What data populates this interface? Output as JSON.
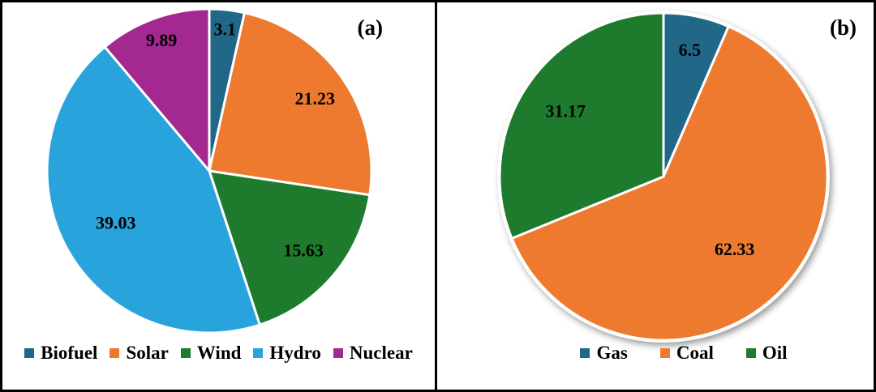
{
  "figure": {
    "background": "#FFFFFF",
    "border_color": "#000000",
    "text_color": "#000000"
  },
  "chart_data": [
    {
      "type": "pie",
      "panel_label": "(a)",
      "start_angle_deg": 0,
      "direction": "clockwise",
      "legend_position": "bottom",
      "shadow": false,
      "white_ring": false,
      "slices": [
        {
          "label": "Biofuel",
          "value": 3.1,
          "display": "3.1",
          "color": "#206788",
          "label_r": 0.88
        },
        {
          "label": "Solar",
          "value": 21.23,
          "display": "21.23",
          "color": "#ED7A2F",
          "label_r": 0.79
        },
        {
          "label": "Wind",
          "value": 15.63,
          "display": "15.63",
          "color": "#1E7B2D",
          "label_r": 0.76
        },
        {
          "label": "Hydro",
          "value": 39.03,
          "display": "39.03",
          "color": "#29A3DC",
          "label_r": 0.66
        },
        {
          "label": "Nuclear",
          "value": 9.89,
          "display": "9.89",
          "color": "#A3288F",
          "label_r": 0.86
        }
      ]
    },
    {
      "type": "pie",
      "panel_label": "(b)",
      "start_angle_deg": 0,
      "direction": "clockwise",
      "legend_position": "bottom",
      "shadow": true,
      "white_ring": true,
      "slices": [
        {
          "label": "Gas",
          "value": 6.5,
          "display": "6.5",
          "color": "#206788",
          "label_r": 0.79
        },
        {
          "label": "Coal",
          "value": 62.33,
          "display": "62.33",
          "color": "#ED7A2F",
          "label_r": 0.62
        },
        {
          "label": "Oil",
          "value": 31.17,
          "display": "31.17",
          "color": "#1E7B2D",
          "label_r": 0.72
        }
      ]
    }
  ]
}
